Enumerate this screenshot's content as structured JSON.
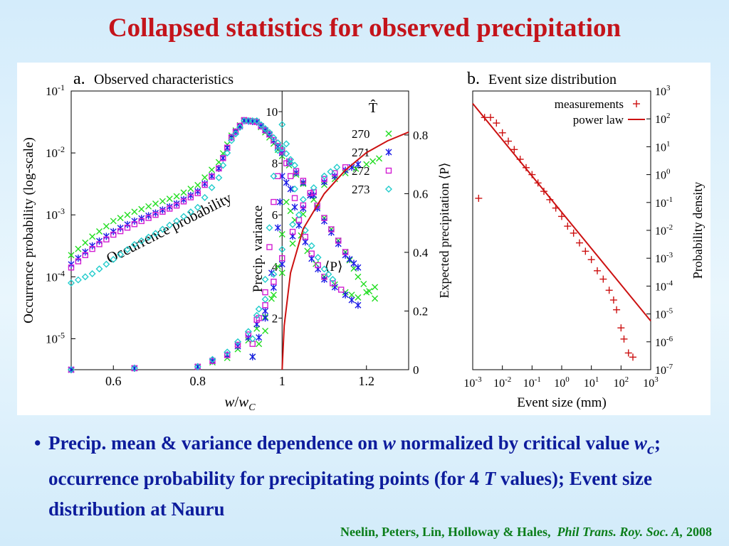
{
  "slide": {
    "title": "Collapsed statistics for observed precipitation",
    "bullet": {
      "dot": "•",
      "p1": "Precip. mean & variance dependence on ",
      "w": "w",
      "p2": " normalized by critical value ",
      "wc_w": "w",
      "wc_c": "c",
      "p3": "; occurrence probability for precipitating points (for 4 ",
      "T": "T",
      "p4": " values); Event size distribution at Nauru"
    },
    "citation": {
      "authors": "Neelin, Peters, Lin, Holloway & Hales,",
      "journal": "Phil Trans. Roy. Soc. A,",
      "year": "2008"
    }
  },
  "colors": {
    "title": "#c4141b",
    "bullet": "#0d1c9c",
    "citation": "#0a7d19",
    "T270": "#22dd22",
    "T271": "#1a1ae6",
    "T272": "#d21ed2",
    "T273": "#22cccc",
    "b_series": "#cc1111"
  },
  "chart_data": [
    {
      "type": "scatter",
      "panel_label": "a.",
      "title": "Observed characteristics",
      "xlabel_w": "w",
      "xlabel_slash": "/",
      "xlabel_wc_w": "w",
      "xlabel_wc_c": "C",
      "ylabel_left": "Occurrence probability (log-scale)",
      "ylabel_right": "Expected precipitation ⟨P⟩",
      "ylabel_inner": "Precip. variance",
      "legend_title": "T̂",
      "legend_placement": "top-right",
      "annotations": {
        "occurrence": "Occurrence probability",
        "mean": "⟨P⟩"
      },
      "xlim": [
        0.5,
        1.3
      ],
      "x_ticks": [
        "0.6",
        "0.8",
        "1",
        "1.2"
      ],
      "x_tick_values": [
        0.6,
        0.8,
        1.0,
        1.2
      ],
      "ylim_left_log": [
        -5.5,
        -1
      ],
      "y_ticks_left": [
        {
          "base": "10",
          "exp": "-1",
          "log": -1
        },
        {
          "base": "10",
          "exp": "-2",
          "log": -2
        },
        {
          "base": "10",
          "exp": "-3",
          "log": -3
        },
        {
          "base": "10",
          "exp": "-4",
          "log": -4
        },
        {
          "base": "10",
          "exp": "-5",
          "log": -5
        }
      ],
      "ylim_right": [
        0,
        0.95
      ],
      "y_ticks_right": [
        "0",
        "0.2",
        "0.4",
        "0.6",
        "0.8"
      ],
      "y_tick_values_right": [
        0,
        0.2,
        0.4,
        0.6,
        0.8
      ],
      "ylim_inner": [
        0,
        10.8
      ],
      "y_ticks_inner": [
        "2",
        "4",
        "6",
        "8",
        "10"
      ],
      "y_tick_values_inner": [
        2,
        4,
        6,
        8,
        10
      ],
      "critical_line_x": 1.0,
      "series": [
        {
          "name": "270",
          "marker": "×",
          "color": "#22dd22",
          "occurrence": [
            [
              0.5,
              -3.65
            ],
            [
              0.55,
              -3.35
            ],
            [
              0.6,
              -3.1
            ],
            [
              0.65,
              -2.95
            ],
            [
              0.7,
              -2.82
            ],
            [
              0.75,
              -2.7
            ],
            [
              0.8,
              -2.52
            ],
            [
              0.85,
              -2.15
            ],
            [
              0.88,
              -1.72
            ],
            [
              0.91,
              -1.47
            ],
            [
              0.94,
              -1.5
            ],
            [
              0.97,
              -1.75
            ],
            [
              1.0,
              -2.05
            ],
            [
              1.05,
              -2.5
            ],
            [
              1.1,
              -3.05
            ],
            [
              1.15,
              -3.6
            ],
            [
              1.18,
              -4.0
            ],
            [
              1.22,
              -4.35
            ]
          ],
          "mean": [
            [
              0.5,
              0.0
            ],
            [
              0.8,
              0.01
            ],
            [
              0.87,
              0.04
            ],
            [
              0.92,
              0.1
            ],
            [
              0.96,
              0.18
            ],
            [
              1.0,
              0.33
            ],
            [
              1.05,
              0.53
            ],
            [
              1.1,
              0.63
            ],
            [
              1.15,
              0.67
            ],
            [
              1.2,
              0.7
            ],
            [
              1.23,
              0.72
            ]
          ],
          "variance": [
            [
              0.93,
              0.5
            ],
            [
              0.96,
              1.5
            ],
            [
              0.99,
              4.0
            ],
            [
              1.01,
              6.5
            ],
            [
              1.03,
              5.8
            ],
            [
              1.06,
              4.6
            ],
            [
              1.1,
              3.6
            ],
            [
              1.15,
              3.0
            ],
            [
              1.18,
              2.8
            ],
            [
              1.22,
              3.2
            ]
          ]
        },
        {
          "name": "271",
          "marker": "∗",
          "color": "#1a1ae6",
          "occurrence": [
            [
              0.5,
              -3.8
            ],
            [
              0.55,
              -3.5
            ],
            [
              0.6,
              -3.27
            ],
            [
              0.65,
              -3.1
            ],
            [
              0.7,
              -2.97
            ],
            [
              0.75,
              -2.82
            ],
            [
              0.8,
              -2.62
            ],
            [
              0.85,
              -2.25
            ],
            [
              0.88,
              -1.75
            ],
            [
              0.91,
              -1.48
            ],
            [
              0.94,
              -1.5
            ],
            [
              0.97,
              -1.7
            ],
            [
              1.0,
              -2.0
            ],
            [
              1.05,
              -2.48
            ],
            [
              1.1,
              -3.1
            ],
            [
              1.15,
              -3.65
            ],
            [
              1.18,
              -3.85
            ]
          ],
          "mean": [
            [
              0.5,
              0.0
            ],
            [
              0.8,
              0.01
            ],
            [
              0.87,
              0.05
            ],
            [
              0.92,
              0.11
            ],
            [
              0.96,
              0.2
            ],
            [
              1.0,
              0.36
            ],
            [
              1.05,
              0.55
            ],
            [
              1.1,
              0.64
            ],
            [
              1.15,
              0.68
            ],
            [
              1.18,
              0.7
            ]
          ],
          "variance": [
            [
              0.93,
              0.5
            ],
            [
              0.96,
              2.0
            ],
            [
              0.99,
              5.5
            ],
            [
              1.0,
              7.5
            ],
            [
              1.02,
              7.0
            ],
            [
              1.04,
              5.6
            ],
            [
              1.07,
              4.3
            ],
            [
              1.1,
              3.5
            ],
            [
              1.15,
              2.9
            ],
            [
              1.18,
              2.5
            ]
          ]
        },
        {
          "name": "272",
          "marker": "□",
          "color": "#d21ed2",
          "occurrence": [
            [
              0.5,
              -3.85
            ],
            [
              0.55,
              -3.55
            ],
            [
              0.6,
              -3.32
            ],
            [
              0.65,
              -3.15
            ],
            [
              0.7,
              -3.0
            ],
            [
              0.75,
              -2.85
            ],
            [
              0.8,
              -2.65
            ],
            [
              0.85,
              -2.25
            ],
            [
              0.88,
              -1.75
            ],
            [
              0.91,
              -1.47
            ],
            [
              0.94,
              -1.5
            ],
            [
              0.97,
              -1.7
            ],
            [
              1.0,
              -1.98
            ],
            [
              1.05,
              -2.45
            ],
            [
              1.1,
              -3.05
            ],
            [
              1.15,
              -3.6
            ]
          ],
          "mean": [
            [
              0.5,
              0.0
            ],
            [
              0.8,
              0.01
            ],
            [
              0.87,
              0.05
            ],
            [
              0.92,
              0.12
            ],
            [
              0.96,
              0.22
            ],
            [
              1.0,
              0.38
            ],
            [
              1.05,
              0.56
            ],
            [
              1.1,
              0.65
            ],
            [
              1.15,
              0.69
            ]
          ],
          "variance": [
            [
              0.93,
              1.0
            ],
            [
              0.96,
              3.0
            ],
            [
              0.98,
              6.5
            ],
            [
              1.0,
              8.5
            ],
            [
              1.02,
              7.5
            ],
            [
              1.04,
              5.8
            ],
            [
              1.07,
              4.5
            ],
            [
              1.1,
              3.6
            ],
            [
              1.14,
              3.1
            ]
          ]
        },
        {
          "name": "273",
          "marker": "◇",
          "color": "#22cccc",
          "occurrence": [
            [
              0.5,
              -4.1
            ],
            [
              0.55,
              -3.95
            ],
            [
              0.6,
              -3.72
            ],
            [
              0.65,
              -3.48
            ],
            [
              0.7,
              -3.3
            ],
            [
              0.75,
              -3.1
            ],
            [
              0.8,
              -2.88
            ],
            [
              0.85,
              -2.4
            ],
            [
              0.88,
              -1.8
            ],
            [
              0.91,
              -1.48
            ],
            [
              0.94,
              -1.48
            ],
            [
              0.97,
              -1.67
            ],
            [
              1.0,
              -1.92
            ],
            [
              1.03,
              -2.2
            ]
          ],
          "mean": [
            [
              0.5,
              0.0
            ],
            [
              0.8,
              0.01
            ],
            [
              0.87,
              0.06
            ],
            [
              0.92,
              0.13
            ],
            [
              0.96,
              0.24
            ],
            [
              1.0,
              0.41
            ],
            [
              1.05,
              0.58
            ],
            [
              1.1,
              0.66
            ],
            [
              1.13,
              0.69
            ]
          ],
          "variance": [
            [
              0.93,
              1.2
            ],
            [
              0.96,
              3.5
            ],
            [
              0.98,
              7.5
            ],
            [
              1.0,
              9.5
            ],
            [
              1.02,
              8.0
            ],
            [
              1.04,
              6.0
            ],
            [
              1.07,
              4.8
            ],
            [
              1.1,
              3.9
            ],
            [
              1.12,
              3.5
            ]
          ]
        }
      ],
      "fit_curve_mean": [
        [
          1.0,
          0.0
        ],
        [
          1.005,
          0.15
        ],
        [
          1.02,
          0.33
        ],
        [
          1.05,
          0.48
        ],
        [
          1.1,
          0.6
        ],
        [
          1.15,
          0.68
        ],
        [
          1.2,
          0.74
        ],
        [
          1.25,
          0.78
        ],
        [
          1.3,
          0.81
        ]
      ]
    },
    {
      "type": "scatter",
      "panel_label": "b.",
      "title": "Event size distribution",
      "xlabel": "Event size (mm)",
      "ylabel": "Probability density",
      "xscale": "log",
      "yscale": "log",
      "xlim_log": [
        -3,
        3
      ],
      "ylim_log": [
        -7,
        3
      ],
      "x_ticks": [
        {
          "base": "10",
          "exp": "-3",
          "log": -3
        },
        {
          "base": "10",
          "exp": "-2",
          "log": -2
        },
        {
          "base": "10",
          "exp": "-1",
          "log": -1
        },
        {
          "base": "10",
          "exp": "0",
          "log": 0
        },
        {
          "base": "10",
          "exp": "1",
          "log": 1
        },
        {
          "base": "10",
          "exp": "2",
          "log": 2
        },
        {
          "base": "10",
          "exp": "3",
          "log": 3
        }
      ],
      "y_ticks": [
        {
          "base": "10",
          "exp": "3",
          "log": 3
        },
        {
          "base": "10",
          "exp": "2",
          "log": 2
        },
        {
          "base": "10",
          "exp": "1",
          "log": 1
        },
        {
          "base": "10",
          "exp": "0",
          "log": 0
        },
        {
          "base": "10",
          "exp": "-1",
          "log": -1
        },
        {
          "base": "10",
          "exp": "-2",
          "log": -2
        },
        {
          "base": "10",
          "exp": "-3",
          "log": -3
        },
        {
          "base": "10",
          "exp": "-4",
          "log": -4
        },
        {
          "base": "10",
          "exp": "-5",
          "log": -5
        },
        {
          "base": "10",
          "exp": "-6",
          "log": -6
        },
        {
          "base": "10",
          "exp": "-7",
          "log": -7
        }
      ],
      "legend_placement": "top-right",
      "series": [
        {
          "name": "measurements",
          "marker": "+",
          "color": "#cc1111",
          "points_log": [
            [
              -2.8,
              -0.85
            ],
            [
              -2.6,
              2.05
            ],
            [
              -2.4,
              2.05
            ],
            [
              -2.2,
              1.85
            ],
            [
              -2.0,
              1.5
            ],
            [
              -1.8,
              1.2
            ],
            [
              -1.6,
              0.9
            ],
            [
              -1.4,
              0.55
            ],
            [
              -1.2,
              0.25
            ],
            [
              -1.0,
              0.0
            ],
            [
              -0.8,
              -0.3
            ],
            [
              -0.6,
              -0.6
            ],
            [
              -0.4,
              -0.9
            ],
            [
              -0.2,
              -1.2
            ],
            [
              0.0,
              -1.5
            ],
            [
              0.2,
              -1.85
            ],
            [
              0.4,
              -2.1
            ],
            [
              0.6,
              -2.45
            ],
            [
              0.8,
              -2.75
            ],
            [
              1.0,
              -3.05
            ],
            [
              1.2,
              -3.45
            ],
            [
              1.4,
              -3.75
            ],
            [
              1.6,
              -4.15
            ],
            [
              1.75,
              -4.5
            ],
            [
              1.85,
              -4.85
            ],
            [
              2.0,
              -5.5
            ],
            [
              2.1,
              -5.9
            ],
            [
              2.25,
              -6.4
            ],
            [
              2.4,
              -6.55
            ]
          ]
        },
        {
          "name": "power law",
          "marker": "line",
          "color": "#cc1111",
          "points_log": [
            [
              -3.0,
              2.55
            ],
            [
              3.0,
              -5.25
            ]
          ]
        }
      ]
    }
  ]
}
